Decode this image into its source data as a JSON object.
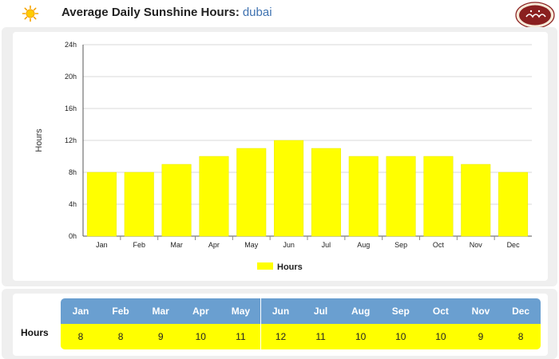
{
  "header": {
    "title": "Average Daily Sunshine Hours:",
    "city": "dubai",
    "icon": "sun-icon",
    "logo_text": "ایسام"
  },
  "colors": {
    "bar": "#ffff00",
    "bar_stroke": "#e8e800",
    "table_header": "#6a9fd0",
    "table_value": "#ffff00",
    "city": "#3f72b0",
    "logo_bg": "#8a1f1f"
  },
  "chart_data": {
    "type": "bar",
    "categories": [
      "Jan",
      "Feb",
      "Mar",
      "Apr",
      "May",
      "Jun",
      "Jul",
      "Aug",
      "Sep",
      "Oct",
      "Nov",
      "Dec"
    ],
    "series": [
      {
        "name": "Hours",
        "values": [
          8,
          8,
          9,
          10,
          11,
          12,
          11,
          10,
          10,
          10,
          9,
          8
        ]
      }
    ],
    "ylabel": "Hours",
    "ylim": [
      0,
      24
    ],
    "yticks": [
      "0h",
      "4h",
      "8h",
      "12h",
      "16h",
      "20h",
      "24h"
    ],
    "grid": true,
    "legend": "bottom-center"
  },
  "table": {
    "row_label": "Hours",
    "months": [
      "Jan",
      "Feb",
      "Mar",
      "Apr",
      "May",
      "Jun",
      "Jul",
      "Aug",
      "Sep",
      "Oct",
      "Nov",
      "Dec"
    ],
    "values": [
      "8",
      "8",
      "9",
      "10",
      "11",
      "12",
      "11",
      "10",
      "10",
      "10",
      "9",
      "8"
    ]
  }
}
